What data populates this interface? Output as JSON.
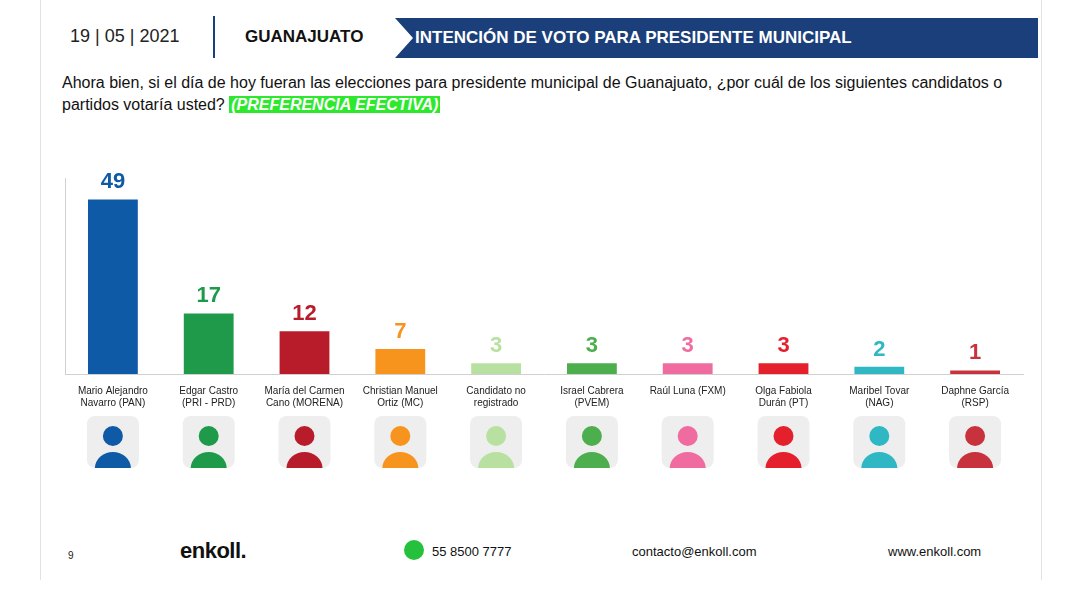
{
  "header": {
    "date": "19 | 05 | 2021",
    "place": "GUANAJUATO",
    "title": "INTENCIÓN DE VOTO PARA PRESIDENTE MUNICIPAL"
  },
  "question": {
    "text": "Ahora bien, si el día de hoy fueran las elecciones para presidente municipal de Guanajuato, ¿por cuál de los siguientes candidatos o partidos votaría usted?",
    "highlight": "(PREFERENCIA EFECTIVA)"
  },
  "chart_data": {
    "type": "bar",
    "categories": [
      "Mario Alejandro Navarro (PAN)",
      "Edgar Castro (PRI - PRD)",
      "María del Carmen Cano (MORENA)",
      "Christian Manuel Ortiz (MC)",
      "Candidato no registrado",
      "Israel Cabrera (PVEM)",
      "Raúl Luna (FXM)",
      "Olga Fabiola Durán (PT)",
      "Maribel Tovar (NAG)",
      "Daphne García (RSP)"
    ],
    "values": [
      49,
      17,
      12,
      7,
      3,
      3,
      3,
      3,
      2,
      1
    ],
    "colors": [
      "#0e5aa7",
      "#1e9a4a",
      "#b81c2a",
      "#f7941d",
      "#b8e0a0",
      "#4cae4c",
      "#f06ba0",
      "#e3202b",
      "#2fb8c4",
      "#c8323c"
    ],
    "ylim": [
      0,
      55
    ],
    "yticks": [],
    "grid": false,
    "data_labels": true,
    "tick_labels": "x"
  },
  "footer": {
    "page": "9",
    "logo": "enkoll.",
    "phone": "55 8500 7777",
    "email": "contacto@enkoll.com",
    "website": "www.enkoll.com"
  }
}
